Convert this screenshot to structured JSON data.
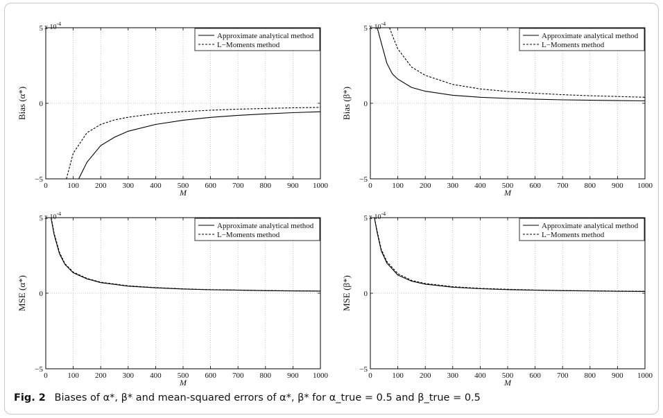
{
  "figure": {
    "label": "Fig. 2",
    "caption": "Biases of α*, β* and mean-squared errors of α*, β* for α_true = 0.5 and β_true = 0.5"
  },
  "chart_data": [
    {
      "type": "line",
      "ylabel": "Bias (α*)",
      "xlabel": "M",
      "xlim": [
        0,
        1000
      ],
      "ylim": [
        -5,
        5
      ],
      "y_scale_label": "x 10^-4",
      "x_ticks": [
        "0",
        "100",
        "200",
        "300",
        "400",
        "500",
        "600",
        "700",
        "800",
        "900",
        "1000"
      ],
      "y_ticks": [
        "5",
        "0",
        "−5"
      ],
      "grid": true,
      "legend_position": "top-right",
      "series": [
        {
          "name": "Approximate analytical method",
          "style": "solid",
          "x": [
            120,
            150,
            200,
            250,
            300,
            400,
            500,
            600,
            700,
            800,
            900,
            1000
          ],
          "y": [
            -5.0,
            -3.9,
            -2.8,
            -2.25,
            -1.85,
            -1.4,
            -1.12,
            -0.93,
            -0.8,
            -0.7,
            -0.62,
            -0.56
          ]
        },
        {
          "name": "L−Moments method",
          "style": "dashed",
          "x": [
            75,
            100,
            150,
            200,
            250,
            300,
            400,
            500,
            600,
            700,
            800,
            900,
            1000
          ],
          "y": [
            -5.0,
            -3.3,
            -1.95,
            -1.4,
            -1.1,
            -0.92,
            -0.68,
            -0.55,
            -0.46,
            -0.39,
            -0.34,
            -0.3,
            -0.27
          ]
        }
      ]
    },
    {
      "type": "line",
      "ylabel": "Bias (β*)",
      "xlabel": "M",
      "xlim": [
        0,
        1000
      ],
      "ylim": [
        -5,
        5
      ],
      "y_scale_label": "x 10^-4",
      "x_ticks": [
        "0",
        "100",
        "200",
        "300",
        "400",
        "500",
        "600",
        "700",
        "800",
        "900",
        "1000"
      ],
      "y_ticks": [
        "5",
        "0",
        "−5"
      ],
      "grid": true,
      "legend_position": "top-right",
      "series": [
        {
          "name": "Approximate analytical method",
          "style": "solid",
          "x": [
            25,
            40,
            60,
            80,
            100,
            150,
            200,
            300,
            400,
            500,
            600,
            700,
            800,
            900,
            1000
          ],
          "y": [
            5.0,
            4.0,
            2.65,
            1.95,
            1.6,
            1.05,
            0.8,
            0.53,
            0.4,
            0.32,
            0.27,
            0.23,
            0.2,
            0.18,
            0.16
          ]
        },
        {
          "name": "L−Moments method",
          "style": "dashed",
          "x": [
            70,
            80,
            100,
            150,
            200,
            300,
            400,
            500,
            600,
            700,
            800,
            900,
            1000
          ],
          "y": [
            5.0,
            4.5,
            3.6,
            2.4,
            1.85,
            1.25,
            0.95,
            0.78,
            0.66,
            0.57,
            0.5,
            0.45,
            0.4
          ]
        }
      ]
    },
    {
      "type": "line",
      "ylabel": "MSE (α*)",
      "xlabel": "M",
      "xlim": [
        0,
        1000
      ],
      "ylim": [
        -5,
        5
      ],
      "y_scale_label": "x 10^-4",
      "x_ticks": [
        "0",
        "100",
        "200",
        "300",
        "400",
        "500",
        "600",
        "700",
        "800",
        "900",
        "1000"
      ],
      "y_ticks": [
        "5",
        "0",
        "−5"
      ],
      "grid": true,
      "legend_position": "top-right",
      "series": [
        {
          "name": "Approximate analytical method",
          "style": "solid",
          "x": [
            20,
            30,
            50,
            70,
            100,
            150,
            200,
            300,
            400,
            500,
            600,
            700,
            800,
            900,
            1000
          ],
          "y": [
            4.9,
            3.9,
            2.6,
            1.9,
            1.35,
            0.95,
            0.7,
            0.47,
            0.36,
            0.28,
            0.23,
            0.2,
            0.17,
            0.15,
            0.14
          ]
        },
        {
          "name": "L−Moments method",
          "style": "dashed",
          "x": [
            20,
            30,
            50,
            70,
            100,
            150,
            200,
            300,
            400,
            500,
            600,
            700,
            800,
            900,
            1000
          ],
          "y": [
            5.0,
            4.0,
            2.7,
            1.95,
            1.4,
            0.98,
            0.73,
            0.49,
            0.37,
            0.29,
            0.24,
            0.21,
            0.18,
            0.16,
            0.14
          ]
        }
      ]
    },
    {
      "type": "line",
      "ylabel": "MSE (β*)",
      "xlabel": "M",
      "xlim": [
        0,
        1000
      ],
      "ylim": [
        -5,
        5
      ],
      "y_scale_label": "x 10^-4",
      "x_ticks": [
        "0",
        "100",
        "200",
        "300",
        "400",
        "500",
        "600",
        "700",
        "800",
        "900",
        "1000"
      ],
      "y_ticks": [
        "5",
        "0",
        "−5"
      ],
      "grid": true,
      "legend_position": "top-right",
      "series": [
        {
          "name": "Approximate analytical method",
          "style": "solid",
          "x": [
            15,
            25,
            40,
            60,
            100,
            150,
            200,
            300,
            400,
            500,
            600,
            700,
            800,
            900,
            1000
          ],
          "y": [
            5.0,
            4.0,
            2.8,
            2.0,
            1.2,
            0.8,
            0.6,
            0.4,
            0.3,
            0.24,
            0.2,
            0.17,
            0.15,
            0.13,
            0.12
          ]
        },
        {
          "name": "L−Moments method",
          "style": "dashed",
          "x": [
            15,
            25,
            40,
            60,
            100,
            150,
            200,
            300,
            400,
            500,
            600,
            700,
            800,
            900,
            1000
          ],
          "y": [
            5.0,
            4.1,
            2.9,
            2.1,
            1.3,
            0.85,
            0.64,
            0.43,
            0.32,
            0.26,
            0.21,
            0.18,
            0.16,
            0.14,
            0.13
          ]
        }
      ]
    }
  ]
}
